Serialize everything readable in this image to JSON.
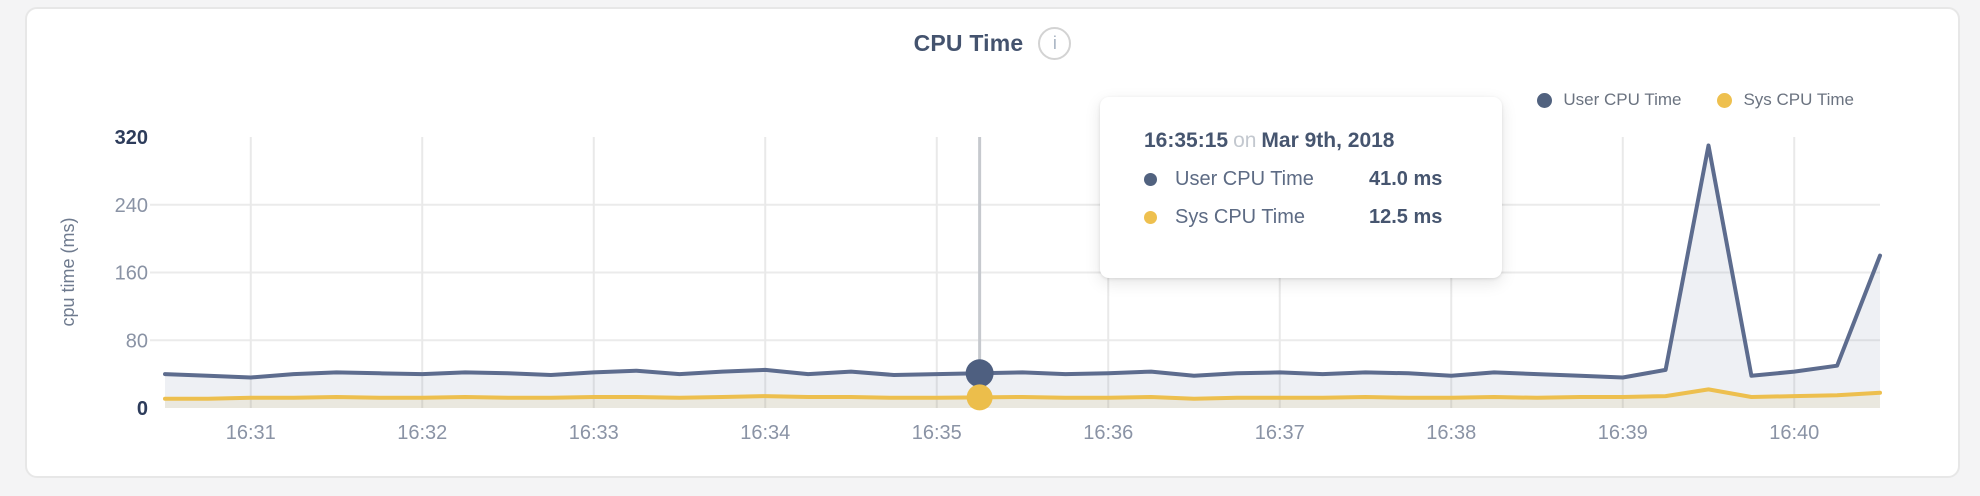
{
  "header": {
    "title": "CPU Time",
    "info_icon_glyph": "i"
  },
  "legend": {
    "items": [
      {
        "label": "User CPU Time",
        "color": "#51627f"
      },
      {
        "label": "Sys CPU Time",
        "color": "#eec04f"
      }
    ]
  },
  "tooltip": {
    "time": "16:35:15",
    "connector": "on",
    "date": "Mar 9th, 2018",
    "rows": [
      {
        "label": "User CPU Time",
        "value": "41.0 ms",
        "color": "#51627f"
      },
      {
        "label": "Sys CPU Time",
        "value": "12.5 ms",
        "color": "#eec04f"
      }
    ]
  },
  "chart_data": {
    "type": "area",
    "title": "CPU Time",
    "ylabel": "cpu time (ms)",
    "ylim": [
      0,
      320
    ],
    "yticks": [
      0,
      80,
      160,
      240,
      320
    ],
    "xticks": [
      "16:31",
      "16:32",
      "16:33",
      "16:34",
      "16:35",
      "16:36",
      "16:37",
      "16:38",
      "16:39",
      "16:40"
    ],
    "x_start": "16:30:30",
    "x_end": "16:40:30",
    "sample_interval_s": 15,
    "grid": true,
    "legend_position": "top-right",
    "hover_index": 19,
    "hover_time": "16:35:15",
    "colors": {
      "grid_h": "#ebebeb",
      "grid_v": "#e9e9e9",
      "crosshair": "#c6c9ce",
      "tick_dark": "#2d3c5b",
      "tick_light": "#8a93a5",
      "axis_title": "#6e7a8e"
    },
    "series": [
      {
        "name": "User CPU Time",
        "color": "#5d6c8e",
        "fill": "rgba(93,108,143,0.10)",
        "dot": "#4e5f80",
        "values": [
          40,
          38,
          36,
          40,
          42,
          41,
          40,
          42,
          41,
          39,
          42,
          44,
          40,
          43,
          45,
          40,
          43,
          39,
          40,
          41,
          42,
          40,
          41,
          43,
          38,
          41,
          42,
          40,
          42,
          41,
          38,
          42,
          40,
          38,
          36,
          45,
          310,
          38,
          43,
          50,
          180
        ]
      },
      {
        "name": "Sys CPU Time",
        "color": "#edbf4e",
        "fill": "rgba(210,175,85,0.13)",
        "dot": "#ecbe4b",
        "values": [
          11,
          11,
          12,
          12,
          13,
          12,
          12,
          13,
          12,
          12,
          13,
          13,
          12,
          13,
          14,
          13,
          13,
          12,
          12,
          12.5,
          13,
          12,
          12,
          13,
          11,
          12,
          12,
          12,
          13,
          12,
          12,
          13,
          12,
          13,
          13,
          14,
          22,
          13,
          14,
          15,
          18
        ]
      }
    ]
  }
}
